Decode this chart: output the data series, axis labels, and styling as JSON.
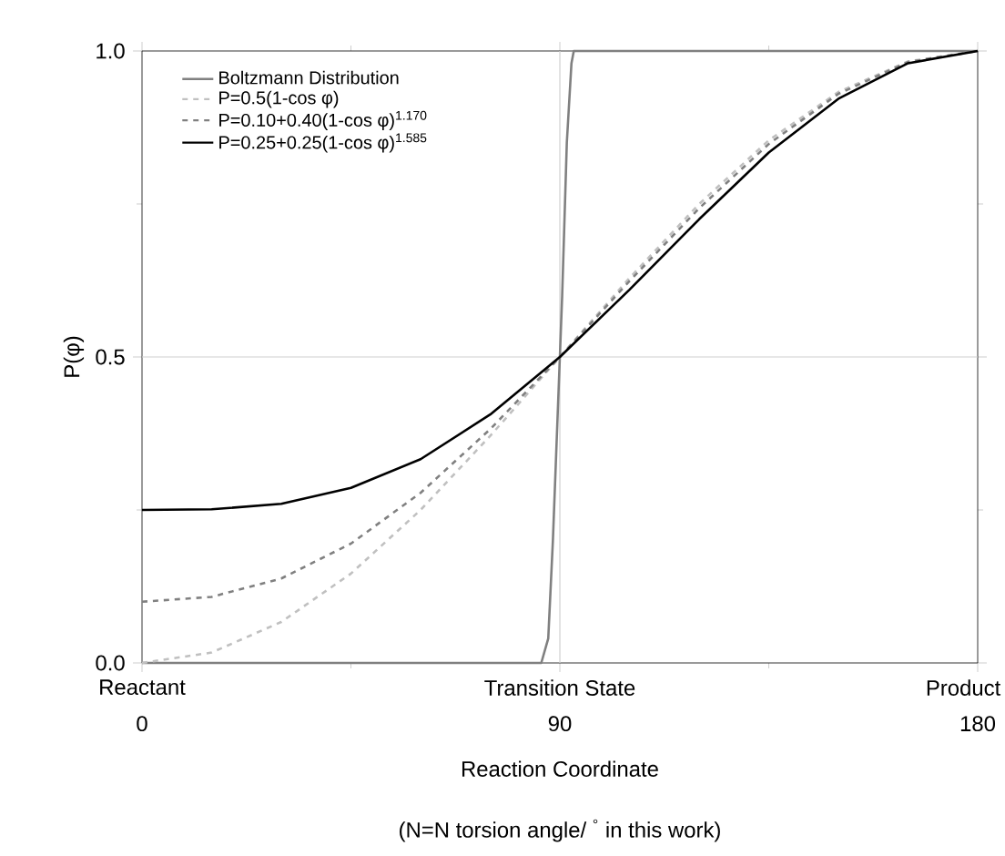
{
  "chart_data": {
    "type": "line",
    "xlabel": "Reaction Coordinate",
    "ylabel": "P(φ)",
    "annotations": [
      "Reactant",
      "Transition State",
      "Product",
      "(N=N torsion angle/ $^{°}$ in this work)"
    ],
    "xlim": [
      0,
      180
    ],
    "ylim": [
      0,
      1.0
    ],
    "xticks": [
      0,
      90,
      180
    ],
    "yticks": [
      {
        "value": 0,
        "label": "0.0"
      },
      {
        "value": 0.5,
        "label": "0.5"
      },
      {
        "value": 1.0,
        "label": "1.0"
      }
    ],
    "legend": "top left",
    "line_style": "solid",
    "ref_lines": [
      {
        "axis": "x",
        "value": 90,
        "color": "#d0d0d0"
      },
      {
        "axis": "y",
        "value": 0.5,
        "color": "#d0d0d0"
      }
    ],
    "series": [
      {
        "name": "Boltzmann Distribution",
        "color": "#808080",
        "x": [
          0,
          86,
          87.5,
          88.5,
          89.5,
          90,
          90.5,
          91.5,
          92.5,
          93,
          180
        ],
        "values": [
          0,
          0,
          0.04,
          0.2,
          0.4,
          0.5,
          0.6,
          0.85,
          0.98,
          1,
          1
        ]
      },
      {
        "name": "P=0.5(1-cos φ)",
        "color": "#c0c0c0",
        "line_style": "dashed",
        "x": [
          0,
          15,
          30,
          45,
          60,
          75,
          90,
          105,
          120,
          135,
          150,
          165,
          180
        ],
        "values": [
          0,
          0.017,
          0.067,
          0.146,
          0.25,
          0.371,
          0.5,
          0.629,
          0.75,
          0.854,
          0.933,
          0.983,
          1
        ]
      },
      {
        "name": "P=0.10+0.40(1-cos φ)$^{1.170}$",
        "color": "#808080",
        "line_style": "dashed",
        "x": [
          0,
          15,
          30,
          45,
          60,
          75,
          90,
          105,
          120,
          135,
          150,
          165,
          180
        ],
        "values": [
          0.1,
          0.108,
          0.138,
          0.195,
          0.278,
          0.382,
          0.5,
          0.624,
          0.743,
          0.848,
          0.93,
          0.982,
          1
        ]
      },
      {
        "name": "P=0.25+0.25(1-cos φ)$^{1.585}$",
        "color": "#000000",
        "x": [
          0,
          15,
          30,
          45,
          60,
          75,
          90,
          105,
          120,
          135,
          150,
          165,
          180
        ],
        "values": [
          0.25,
          0.251,
          0.26,
          0.286,
          0.333,
          0.406,
          0.5,
          0.61,
          0.725,
          0.834,
          0.922,
          0.98,
          1
        ]
      }
    ]
  }
}
